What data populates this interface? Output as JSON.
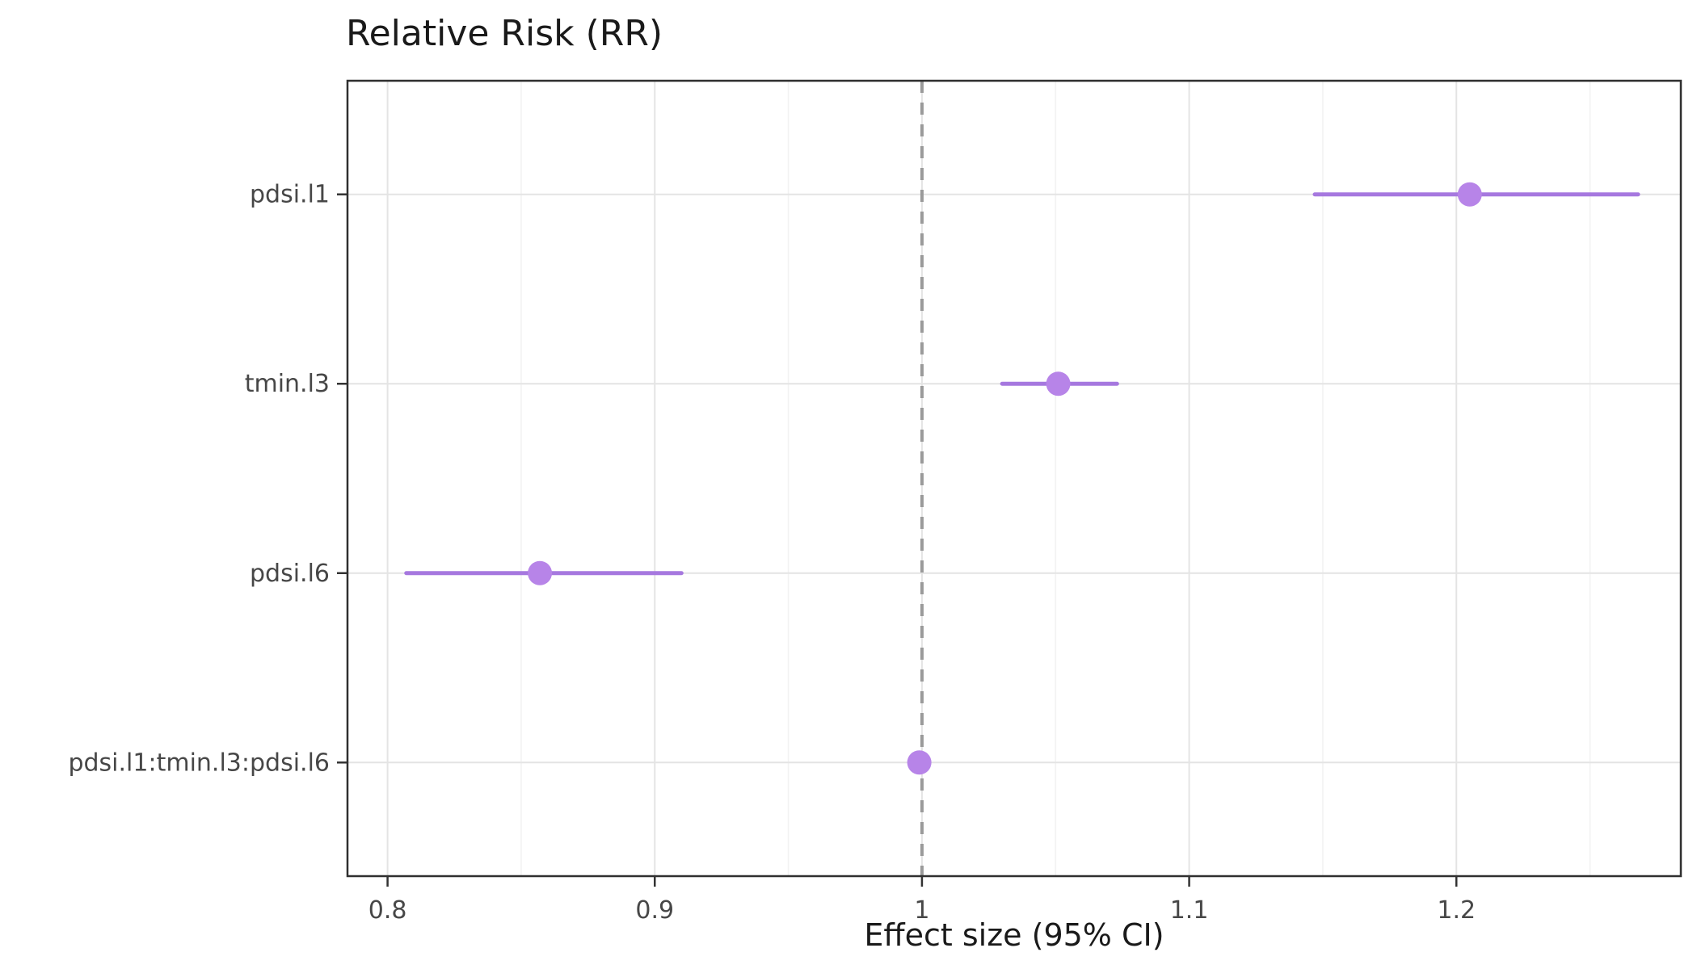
{
  "chart_data": {
    "type": "scatter",
    "subtype": "forest-plot",
    "title": "Relative Risk (RR)",
    "xlabel": "Effect size (95% CI)",
    "ylabel": "",
    "legend": "none",
    "grid": true,
    "categories": [
      "pdsi.l1",
      "tmin.l3",
      "pdsi.l6",
      "pdsi.l1:tmin.l3:pdsi.l6"
    ],
    "points": [
      {
        "label": "pdsi.l1",
        "estimate": 1.205,
        "ci_low": 1.147,
        "ci_high": 1.268
      },
      {
        "label": "tmin.l3",
        "estimate": 1.051,
        "ci_low": 1.03,
        "ci_high": 1.073
      },
      {
        "label": "pdsi.l6",
        "estimate": 0.857,
        "ci_low": 0.807,
        "ci_high": 0.91
      },
      {
        "label": "pdsi.l1:tmin.l3:pdsi.l6",
        "estimate": 0.999,
        "ci_low": 0.996,
        "ci_high": 1.002
      }
    ],
    "x_tick_values": [
      0.8,
      0.9,
      1,
      1.1,
      1.2
    ],
    "x_tick_labels": [
      "0.8",
      "0.9",
      "1",
      "1.1",
      "1.2"
    ],
    "x_minor_tick_values": [
      0.85,
      0.95,
      1.05,
      1.15,
      1.25
    ],
    "xlim": [
      0.785,
      1.284
    ],
    "reference_line": 1,
    "colors": {
      "point": "#B784E8",
      "interval": "#A678DF",
      "reference_line": "#9A9A9A",
      "grid_major": "#E4E4E4",
      "grid_minor": "#F2F2F2",
      "panel_border": "#2F2F2F",
      "axis_tick": "#333333",
      "axis_text": "#474747",
      "title_text": "#1A1A1A",
      "panel_background": "#FFFFFF"
    }
  }
}
